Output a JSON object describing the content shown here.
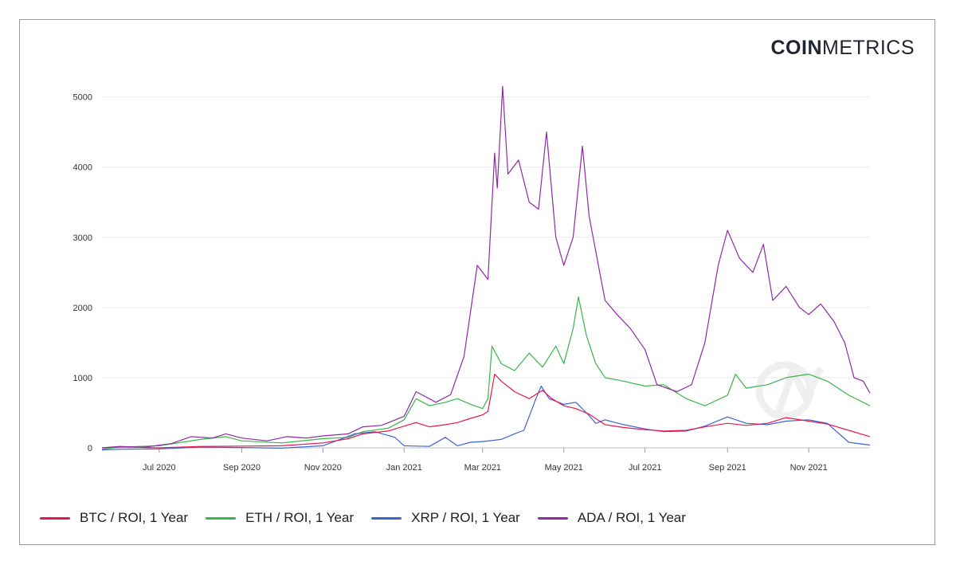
{
  "brand": {
    "bold": "COIN",
    "light": "METRICS"
  },
  "chart_data": {
    "type": "line",
    "title": "",
    "xlabel": "",
    "ylabel": "",
    "ylim": [
      0,
      5200
    ],
    "y_ticks": [
      0,
      1000,
      2000,
      3000,
      4000,
      5000
    ],
    "y_tick_labels": [
      "0",
      "1000",
      "2000",
      "3000",
      "4000",
      "5000"
    ],
    "x_range": [
      "2020-05-19",
      "2021-12-17"
    ],
    "x_ticks": [
      {
        "date": "2020-07-01",
        "label": "Jul 2020"
      },
      {
        "date": "2020-09-01",
        "label": "Sep 2020"
      },
      {
        "date": "2020-11-01",
        "label": "Nov 2020"
      },
      {
        "date": "2021-01-01",
        "label": "Jan 2021"
      },
      {
        "date": "2021-03-01",
        "label": "Mar 2021"
      },
      {
        "date": "2021-05-01",
        "label": "May 2021"
      },
      {
        "date": "2021-07-01",
        "label": "Jul 2021"
      },
      {
        "date": "2021-09-01",
        "label": "Sep 2021"
      },
      {
        "date": "2021-11-01",
        "label": "Nov 2021"
      }
    ],
    "grid": true,
    "legend_position": "bottom-left",
    "series": [
      {
        "name": "BTC / ROI, 1 Year",
        "color": "#e8174f",
        "points": [
          [
            "2020-05-19",
            0
          ],
          [
            "2020-06-01",
            15
          ],
          [
            "2020-07-01",
            0
          ],
          [
            "2020-08-01",
            20
          ],
          [
            "2020-09-01",
            25
          ],
          [
            "2020-10-01",
            30
          ],
          [
            "2020-11-01",
            70
          ],
          [
            "2020-11-20",
            130
          ],
          [
            "2020-12-01",
            200
          ],
          [
            "2020-12-20",
            240
          ],
          [
            "2021-01-01",
            310
          ],
          [
            "2021-01-10",
            360
          ],
          [
            "2021-01-20",
            300
          ],
          [
            "2021-02-01",
            330
          ],
          [
            "2021-02-10",
            360
          ],
          [
            "2021-02-20",
            420
          ],
          [
            "2021-03-01",
            470
          ],
          [
            "2021-03-05",
            520
          ],
          [
            "2021-03-10",
            1050
          ],
          [
            "2021-03-15",
            950
          ],
          [
            "2021-03-25",
            800
          ],
          [
            "2021-04-05",
            700
          ],
          [
            "2021-04-15",
            820
          ],
          [
            "2021-04-22",
            700
          ],
          [
            "2021-05-01",
            600
          ],
          [
            "2021-05-10",
            560
          ],
          [
            "2021-05-20",
            480
          ],
          [
            "2021-06-01",
            330
          ],
          [
            "2021-06-15",
            290
          ],
          [
            "2021-07-01",
            260
          ],
          [
            "2021-07-15",
            240
          ],
          [
            "2021-08-01",
            250
          ],
          [
            "2021-08-15",
            300
          ],
          [
            "2021-09-01",
            350
          ],
          [
            "2021-09-15",
            320
          ],
          [
            "2021-10-01",
            350
          ],
          [
            "2021-10-15",
            430
          ],
          [
            "2021-11-01",
            380
          ],
          [
            "2021-11-15",
            340
          ],
          [
            "2021-12-01",
            250
          ],
          [
            "2021-12-17",
            160
          ]
        ]
      },
      {
        "name": "ETH / ROI, 1 Year",
        "color": "#3ab54a",
        "points": [
          [
            "2020-05-19",
            -20
          ],
          [
            "2020-06-01",
            10
          ],
          [
            "2020-07-01",
            30
          ],
          [
            "2020-08-01",
            120
          ],
          [
            "2020-08-20",
            160
          ],
          [
            "2020-09-01",
            100
          ],
          [
            "2020-10-01",
            70
          ],
          [
            "2020-11-01",
            130
          ],
          [
            "2020-11-20",
            150
          ],
          [
            "2020-12-01",
            230
          ],
          [
            "2020-12-20",
            280
          ],
          [
            "2021-01-01",
            400
          ],
          [
            "2021-01-10",
            700
          ],
          [
            "2021-01-20",
            600
          ],
          [
            "2021-02-01",
            650
          ],
          [
            "2021-02-10",
            700
          ],
          [
            "2021-02-20",
            620
          ],
          [
            "2021-03-01",
            560
          ],
          [
            "2021-03-05",
            700
          ],
          [
            "2021-03-08",
            1450
          ],
          [
            "2021-03-15",
            1200
          ],
          [
            "2021-03-25",
            1100
          ],
          [
            "2021-04-05",
            1350
          ],
          [
            "2021-04-15",
            1150
          ],
          [
            "2021-04-25",
            1450
          ],
          [
            "2021-05-01",
            1200
          ],
          [
            "2021-05-08",
            1700
          ],
          [
            "2021-05-12",
            2150
          ],
          [
            "2021-05-18",
            1600
          ],
          [
            "2021-05-25",
            1200
          ],
          [
            "2021-06-01",
            1000
          ],
          [
            "2021-06-15",
            950
          ],
          [
            "2021-07-01",
            880
          ],
          [
            "2021-07-15",
            900
          ],
          [
            "2021-08-01",
            700
          ],
          [
            "2021-08-15",
            600
          ],
          [
            "2021-09-01",
            750
          ],
          [
            "2021-09-07",
            1050
          ],
          [
            "2021-09-15",
            850
          ],
          [
            "2021-10-01",
            900
          ],
          [
            "2021-10-15",
            1000
          ],
          [
            "2021-11-01",
            1050
          ],
          [
            "2021-11-15",
            950
          ],
          [
            "2021-12-01",
            750
          ],
          [
            "2021-12-17",
            600
          ]
        ]
      },
      {
        "name": "XRP / ROI, 1 Year",
        "color": "#3f63d4",
        "points": [
          [
            "2020-05-19",
            -30
          ],
          [
            "2020-06-01",
            -20
          ],
          [
            "2020-07-01",
            -15
          ],
          [
            "2020-08-01",
            10
          ],
          [
            "2020-09-01",
            5
          ],
          [
            "2020-10-01",
            -5
          ],
          [
            "2020-11-01",
            30
          ],
          [
            "2020-11-25",
            200
          ],
          [
            "2020-12-10",
            230
          ],
          [
            "2020-12-25",
            150
          ],
          [
            "2021-01-01",
            30
          ],
          [
            "2021-01-20",
            20
          ],
          [
            "2021-02-01",
            150
          ],
          [
            "2021-02-10",
            30
          ],
          [
            "2021-02-20",
            80
          ],
          [
            "2021-03-01",
            90
          ],
          [
            "2021-03-15",
            120
          ],
          [
            "2021-03-25",
            200
          ],
          [
            "2021-04-01",
            250
          ],
          [
            "2021-04-10",
            700
          ],
          [
            "2021-04-14",
            880
          ],
          [
            "2021-04-20",
            700
          ],
          [
            "2021-05-01",
            620
          ],
          [
            "2021-05-10",
            650
          ],
          [
            "2021-05-18",
            500
          ],
          [
            "2021-05-25",
            350
          ],
          [
            "2021-06-01",
            400
          ],
          [
            "2021-06-15",
            330
          ],
          [
            "2021-07-01",
            270
          ],
          [
            "2021-07-15",
            230
          ],
          [
            "2021-08-01",
            240
          ],
          [
            "2021-08-15",
            310
          ],
          [
            "2021-09-01",
            440
          ],
          [
            "2021-09-15",
            350
          ],
          [
            "2021-10-01",
            330
          ],
          [
            "2021-10-15",
            380
          ],
          [
            "2021-11-01",
            400
          ],
          [
            "2021-11-15",
            350
          ],
          [
            "2021-12-01",
            80
          ],
          [
            "2021-12-17",
            40
          ]
        ]
      },
      {
        "name": "ADA / ROI, 1 Year",
        "color": "#8e2aa6",
        "points": [
          [
            "2020-05-19",
            0
          ],
          [
            "2020-06-01",
            20
          ],
          [
            "2020-06-20",
            10
          ],
          [
            "2020-07-10",
            60
          ],
          [
            "2020-07-25",
            160
          ],
          [
            "2020-08-10",
            140
          ],
          [
            "2020-08-20",
            200
          ],
          [
            "2020-09-01",
            140
          ],
          [
            "2020-09-20",
            100
          ],
          [
            "2020-10-05",
            160
          ],
          [
            "2020-10-20",
            140
          ],
          [
            "2020-11-01",
            170
          ],
          [
            "2020-11-20",
            200
          ],
          [
            "2020-12-01",
            300
          ],
          [
            "2020-12-15",
            320
          ],
          [
            "2021-01-01",
            450
          ],
          [
            "2021-01-10",
            800
          ],
          [
            "2021-01-25",
            650
          ],
          [
            "2021-02-05",
            760
          ],
          [
            "2021-02-15",
            1300
          ],
          [
            "2021-02-25",
            2600
          ],
          [
            "2021-03-05",
            2400
          ],
          [
            "2021-03-10",
            4200
          ],
          [
            "2021-03-12",
            3700
          ],
          [
            "2021-03-16",
            5150
          ],
          [
            "2021-03-20",
            3900
          ],
          [
            "2021-03-28",
            4100
          ],
          [
            "2021-04-05",
            3500
          ],
          [
            "2021-04-12",
            3400
          ],
          [
            "2021-04-18",
            4500
          ],
          [
            "2021-04-25",
            3000
          ],
          [
            "2021-05-01",
            2600
          ],
          [
            "2021-05-08",
            3000
          ],
          [
            "2021-05-15",
            4300
          ],
          [
            "2021-05-20",
            3300
          ],
          [
            "2021-05-25",
            2800
          ],
          [
            "2021-06-01",
            2100
          ],
          [
            "2021-06-10",
            1900
          ],
          [
            "2021-06-20",
            1700
          ],
          [
            "2021-07-01",
            1400
          ],
          [
            "2021-07-10",
            900
          ],
          [
            "2021-07-25",
            800
          ],
          [
            "2021-08-05",
            900
          ],
          [
            "2021-08-15",
            1500
          ],
          [
            "2021-08-25",
            2600
          ],
          [
            "2021-09-01",
            3100
          ],
          [
            "2021-09-10",
            2700
          ],
          [
            "2021-09-20",
            2500
          ],
          [
            "2021-09-28",
            2900
          ],
          [
            "2021-10-05",
            2100
          ],
          [
            "2021-10-15",
            2300
          ],
          [
            "2021-10-25",
            2000
          ],
          [
            "2021-11-01",
            1900
          ],
          [
            "2021-11-10",
            2050
          ],
          [
            "2021-11-20",
            1800
          ],
          [
            "2021-11-28",
            1500
          ],
          [
            "2021-12-05",
            1000
          ],
          [
            "2021-12-12",
            950
          ],
          [
            "2021-12-17",
            780
          ]
        ]
      }
    ]
  }
}
